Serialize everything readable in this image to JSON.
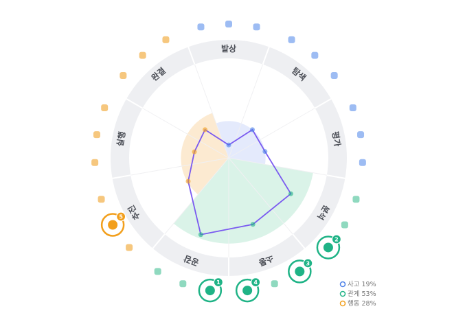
{
  "chart_data": {
    "type": "radial-wedge",
    "rlim": [
      0,
      100
    ],
    "groups": [
      {
        "name": "사고",
        "color": "#4a7fe8",
        "fill": "#dfe6fb",
        "icon_color": "#9dbcf3",
        "share": 19,
        "share_label": "19%",
        "level": 37,
        "categories": [
          {
            "label": "발상",
            "value": 13,
            "badges": [
              null,
              null,
              null
            ]
          },
          {
            "label": "탐색",
            "value": 37,
            "badges": [
              null,
              null,
              null
            ]
          },
          {
            "label": "평가",
            "value": 37,
            "badges": [
              null,
              null,
              null
            ]
          }
        ]
      },
      {
        "name": "관계",
        "color": "#1fb386",
        "fill": "#d3f1e4",
        "icon_color": "#8fd9bf",
        "share": 53,
        "share_label": "53%",
        "level": 86,
        "categories": [
          {
            "label": "분석",
            "value": 72,
            "badges": [
              null,
              null,
              2
            ]
          },
          {
            "label": "소통",
            "value": 71,
            "badges": [
              3,
              null,
              4
            ]
          },
          {
            "label": "공감",
            "value": 82,
            "badges": [
              1,
              null,
              null
            ]
          }
        ]
      },
      {
        "name": "행동",
        "color": "#f29f1c",
        "fill": "#fce6c9",
        "icon_color": "#f6c77e",
        "share": 28,
        "share_label": "28%",
        "level": 48,
        "categories": [
          {
            "label": "추진",
            "value": 47,
            "badges": [
              null,
              5,
              null
            ]
          },
          {
            "label": "실행",
            "value": 35,
            "badges": [
              null,
              null,
              null
            ]
          },
          {
            "label": "완결",
            "value": 37,
            "badges": [
              null,
              null,
              null
            ]
          }
        ]
      }
    ]
  }
}
